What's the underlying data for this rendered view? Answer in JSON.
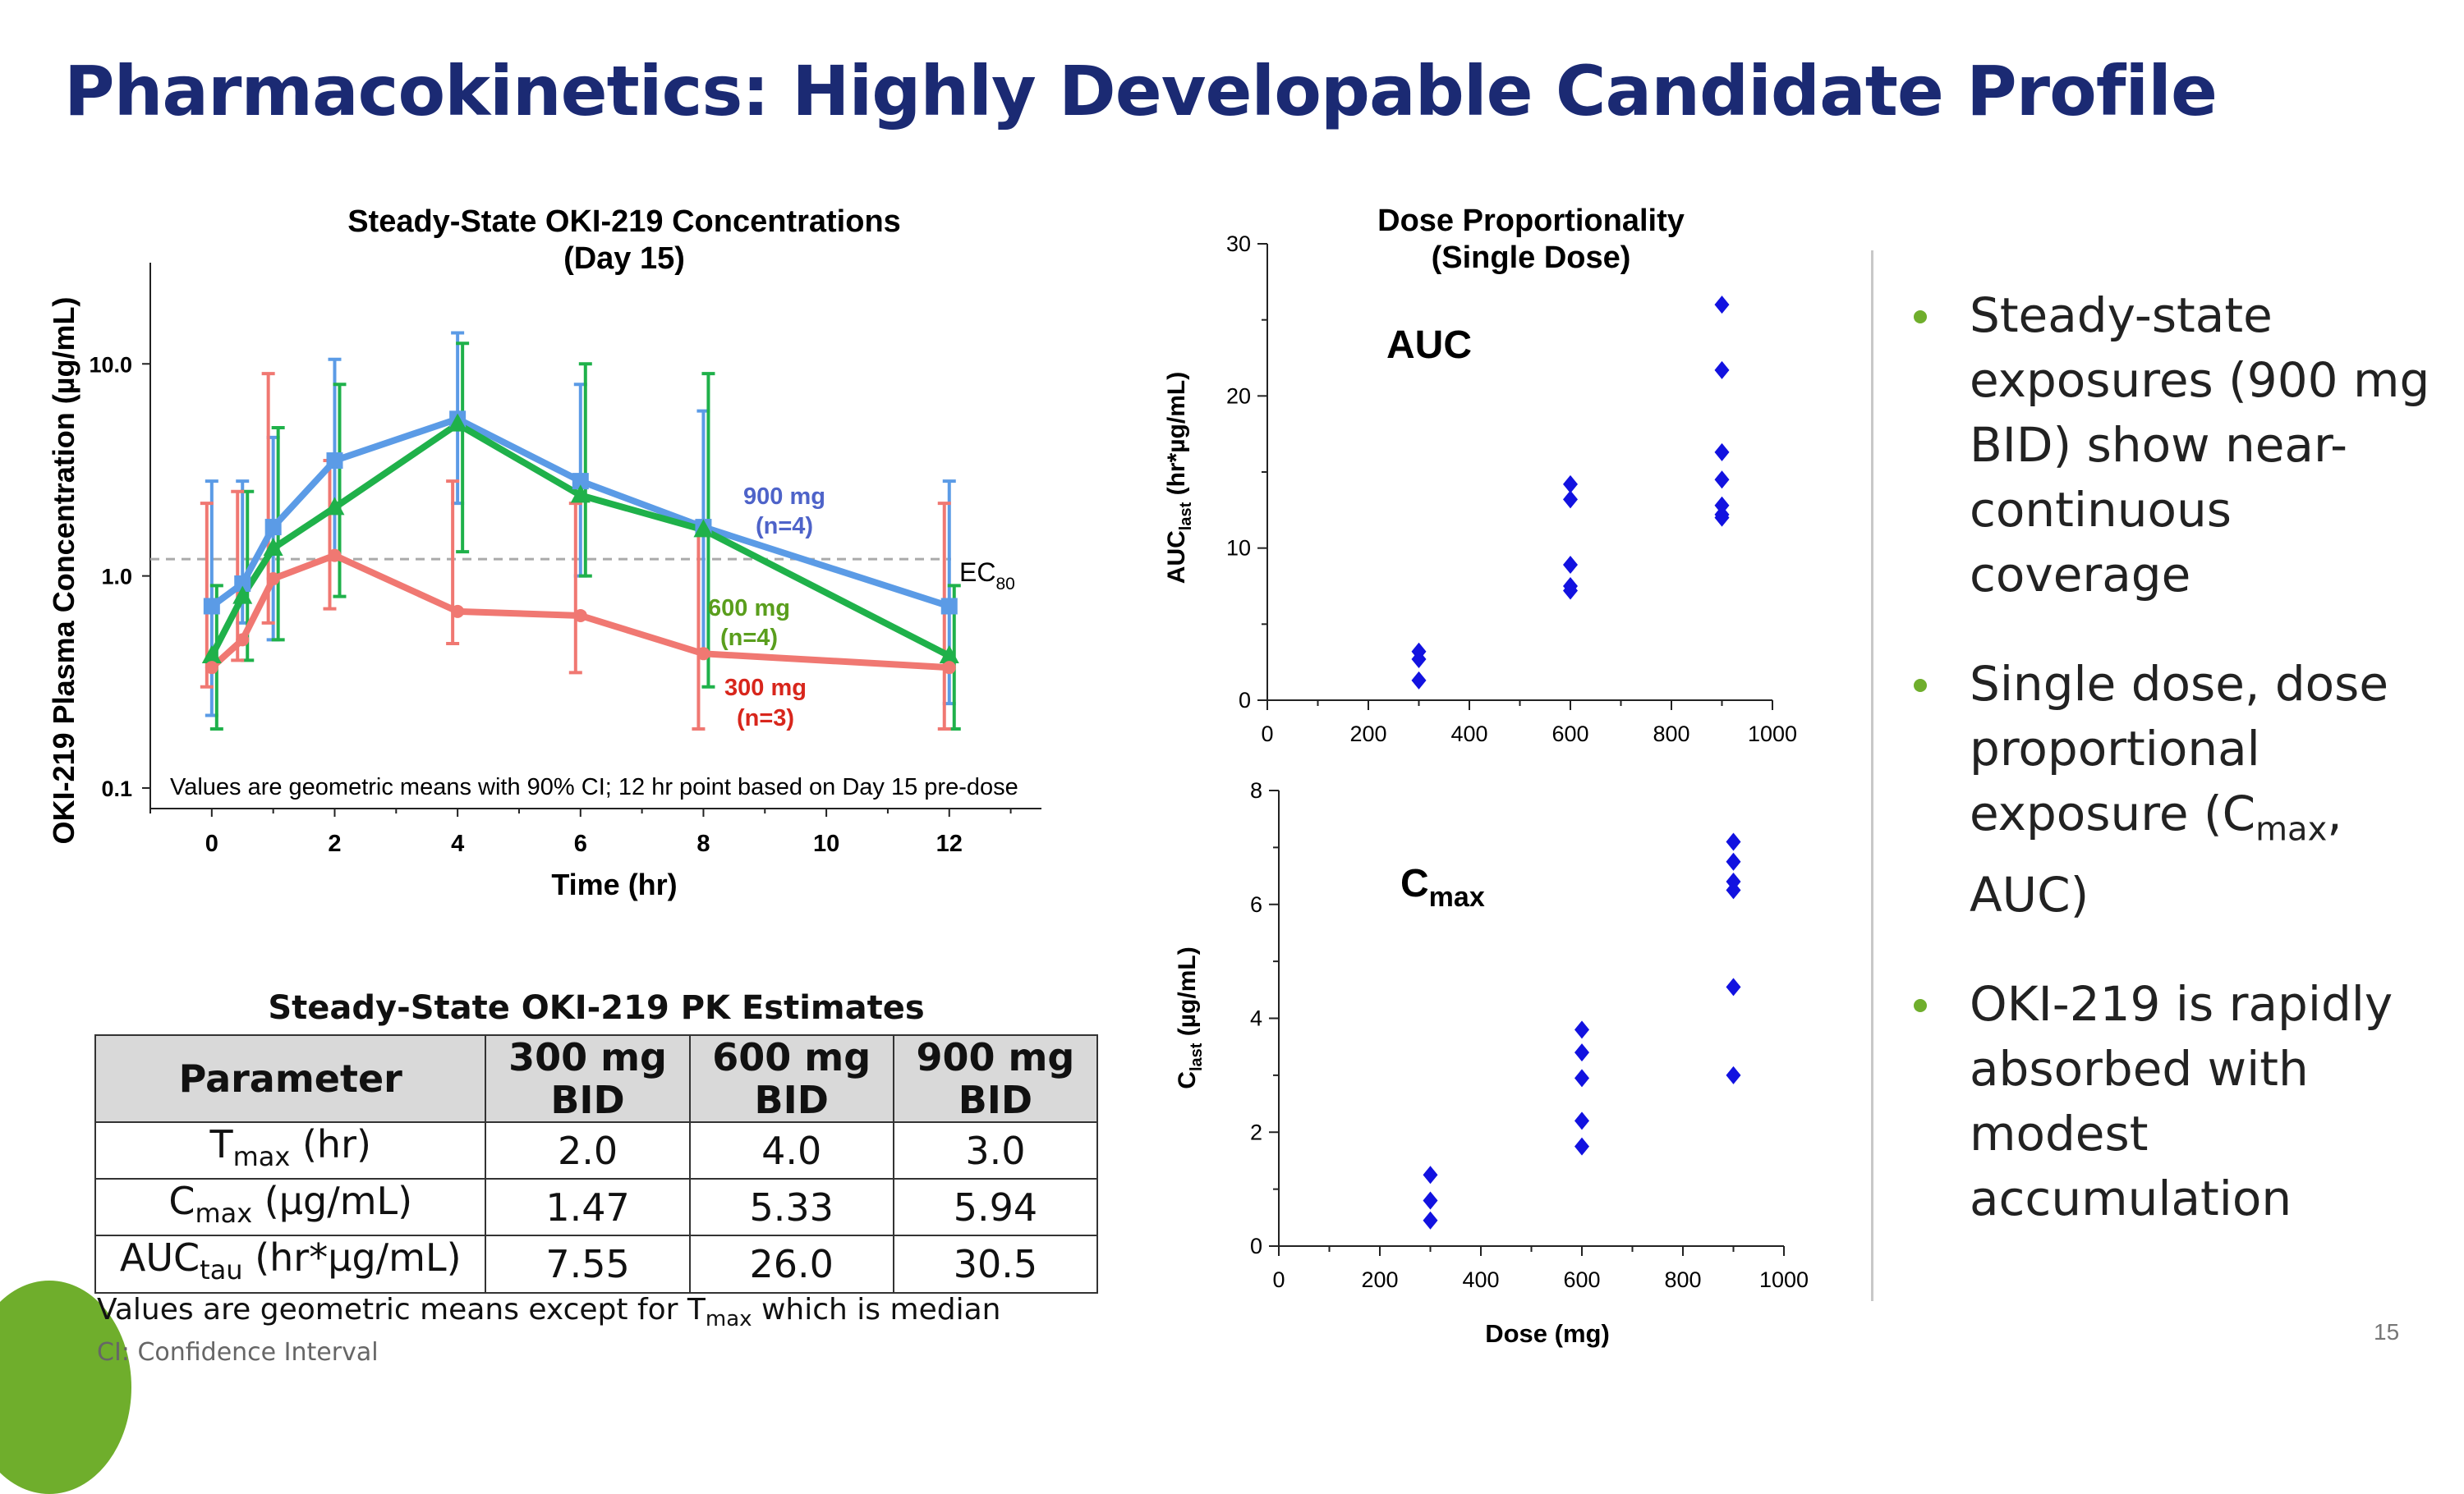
{
  "page": {
    "title": "Pharmacokinetics: Highly Developable Candidate Profile",
    "page_number": "15",
    "accent_color": "#1b2a73",
    "bullet_color": "#6fae2c"
  },
  "bullets": [
    {
      "text": "Steady-state exposures (900 mg BID) show near-continuous coverage"
    },
    {
      "pre": "Single dose, dose proportional exposure (C",
      "sub": "max",
      "post": ", AUC)"
    },
    {
      "text": "OKI-219 is rapidly absorbed with modest accumulation"
    }
  ],
  "table": {
    "title": "Steady-State OKI-219 PK Estimates",
    "header": {
      "param": "Parameter",
      "cols": [
        {
          "dose": "300 mg",
          "reg": "BID"
        },
        {
          "dose": "600 mg",
          "reg": "BID"
        },
        {
          "dose": "900 mg",
          "reg": "BID"
        }
      ]
    },
    "rows": [
      {
        "base": "T",
        "sub": "max",
        "unit": " (hr)",
        "values": [
          "2.0",
          "4.0",
          "3.0"
        ]
      },
      {
        "base": "C",
        "sub": "max",
        "unit": " (µg/mL)",
        "values": [
          "1.47",
          "5.33",
          "5.94"
        ]
      },
      {
        "base": "AUC",
        "sub": "tau",
        "unit": " (hr*µg/mL)",
        "values": [
          "7.55",
          "26.0",
          "30.5"
        ]
      }
    ],
    "note_pre": "Values are geometric means except for T",
    "note_sub": "max",
    "note_post": " which is median",
    "footnote": "CI: Confidence Interval"
  },
  "chart_data": [
    {
      "type": "line",
      "title": "Steady-State OKI-219 Concentrations",
      "subtitle": "(Day 15)",
      "xlabel": "Time (hr)",
      "ylabel": "OKI-219 Plasma Concentration (µg/mL)",
      "yscale": "log",
      "xlim": [
        -1,
        13.5
      ],
      "ylim": [
        0.08,
        30
      ],
      "xticks": [
        0,
        2,
        4,
        6,
        8,
        10,
        12
      ],
      "yticks": [
        {
          "v": 0.1,
          "label": "0.1"
        },
        {
          "v": 1.0,
          "label": "1.0"
        },
        {
          "v": 10.0,
          "label": "10.0"
        }
      ],
      "annotation": "Values are geometric means with 90% CI; 12 hr point based on Day 15 pre-dose",
      "reference": {
        "value": 1.2,
        "label": "EC",
        "sub": "80"
      },
      "series": [
        {
          "name": "900 mg",
          "n": "(n=4)",
          "color": "#5b9be6",
          "label_color": "#4e63c9",
          "marker": "square",
          "x": [
            0,
            0.5,
            1,
            2,
            4,
            6,
            8,
            12
          ],
          "y": [
            0.72,
            0.92,
            1.7,
            3.5,
            5.5,
            2.8,
            1.7,
            0.72
          ],
          "lo": [
            0.22,
            0.6,
            0.5,
            1.2,
            2.2,
            1.0,
            0.45,
            0.25
          ],
          "hi": [
            2.8,
            2.8,
            4.5,
            10.5,
            14.0,
            8.0,
            6.0,
            2.8
          ]
        },
        {
          "name": "600 mg",
          "n": "(n=4)",
          "color": "#1fb14a",
          "label_color": "#5a9e1d",
          "marker": "triangle",
          "x": [
            0,
            0.5,
            1,
            2,
            4,
            6,
            8,
            12
          ],
          "y": [
            0.42,
            0.8,
            1.35,
            2.1,
            5.2,
            2.4,
            1.65,
            0.42
          ],
          "lo": [
            0.19,
            0.4,
            0.5,
            0.8,
            1.3,
            1.0,
            0.3,
            0.19
          ],
          "hi": [
            0.9,
            2.5,
            5.0,
            8.0,
            12.5,
            10.0,
            9.0,
            0.9
          ]
        },
        {
          "name": "300 mg",
          "n": "(n=3)",
          "color": "#f07872",
          "label_color": "#d8261c",
          "marker": "circle",
          "x": [
            0,
            0.5,
            1,
            2,
            4,
            6,
            8,
            12
          ],
          "y": [
            0.37,
            0.5,
            0.97,
            1.25,
            0.68,
            0.65,
            0.43,
            0.37
          ],
          "lo": [
            0.3,
            0.4,
            0.6,
            0.7,
            0.48,
            0.35,
            0.19,
            0.19
          ],
          "hi": [
            2.2,
            2.5,
            9.0,
            3.5,
            2.8,
            2.2,
            1.8,
            2.2
          ]
        }
      ]
    },
    {
      "type": "scatter",
      "title": "Dose Proportionality",
      "subtitle": "(Single Dose)",
      "label": "AUC",
      "ylabel_base": "AUC",
      "ylabel_sub": "last",
      "ylabel_unit": " (hr*µg/mL)",
      "xlabel": "",
      "xlim": [
        0,
        1000
      ],
      "ylim": [
        0,
        30
      ],
      "xticks": [
        0,
        200,
        400,
        600,
        800,
        1000
      ],
      "yticks": [
        0,
        10,
        20,
        30
      ],
      "color": "#1212e0",
      "x": [
        300,
        300,
        300,
        600,
        600,
        600,
        600,
        600,
        900,
        900,
        900,
        900,
        900,
        900,
        900
      ],
      "y": [
        3.2,
        2.7,
        1.3,
        14.2,
        13.2,
        8.9,
        7.5,
        7.2,
        26.0,
        21.7,
        16.3,
        14.5,
        12.8,
        12.2,
        12.0
      ]
    },
    {
      "type": "scatter",
      "title": "",
      "label_base": "C",
      "label_sub": "max",
      "ylabel_base": "C",
      "ylabel_sub": "last",
      "ylabel_unit": " (µg/mL)",
      "xlabel": "Dose (mg)",
      "xlim": [
        0,
        1000
      ],
      "ylim": [
        0,
        8
      ],
      "xticks": [
        0,
        200,
        400,
        600,
        800,
        1000
      ],
      "yticks": [
        0,
        2,
        4,
        6,
        8
      ],
      "color": "#1212e0",
      "x": [
        300,
        300,
        300,
        600,
        600,
        600,
        600,
        600,
        900,
        900,
        900,
        900,
        900,
        900
      ],
      "y": [
        1.25,
        0.8,
        0.45,
        3.8,
        3.4,
        2.95,
        2.2,
        1.75,
        7.1,
        6.75,
        6.4,
        6.25,
        4.55,
        3.0
      ]
    }
  ]
}
